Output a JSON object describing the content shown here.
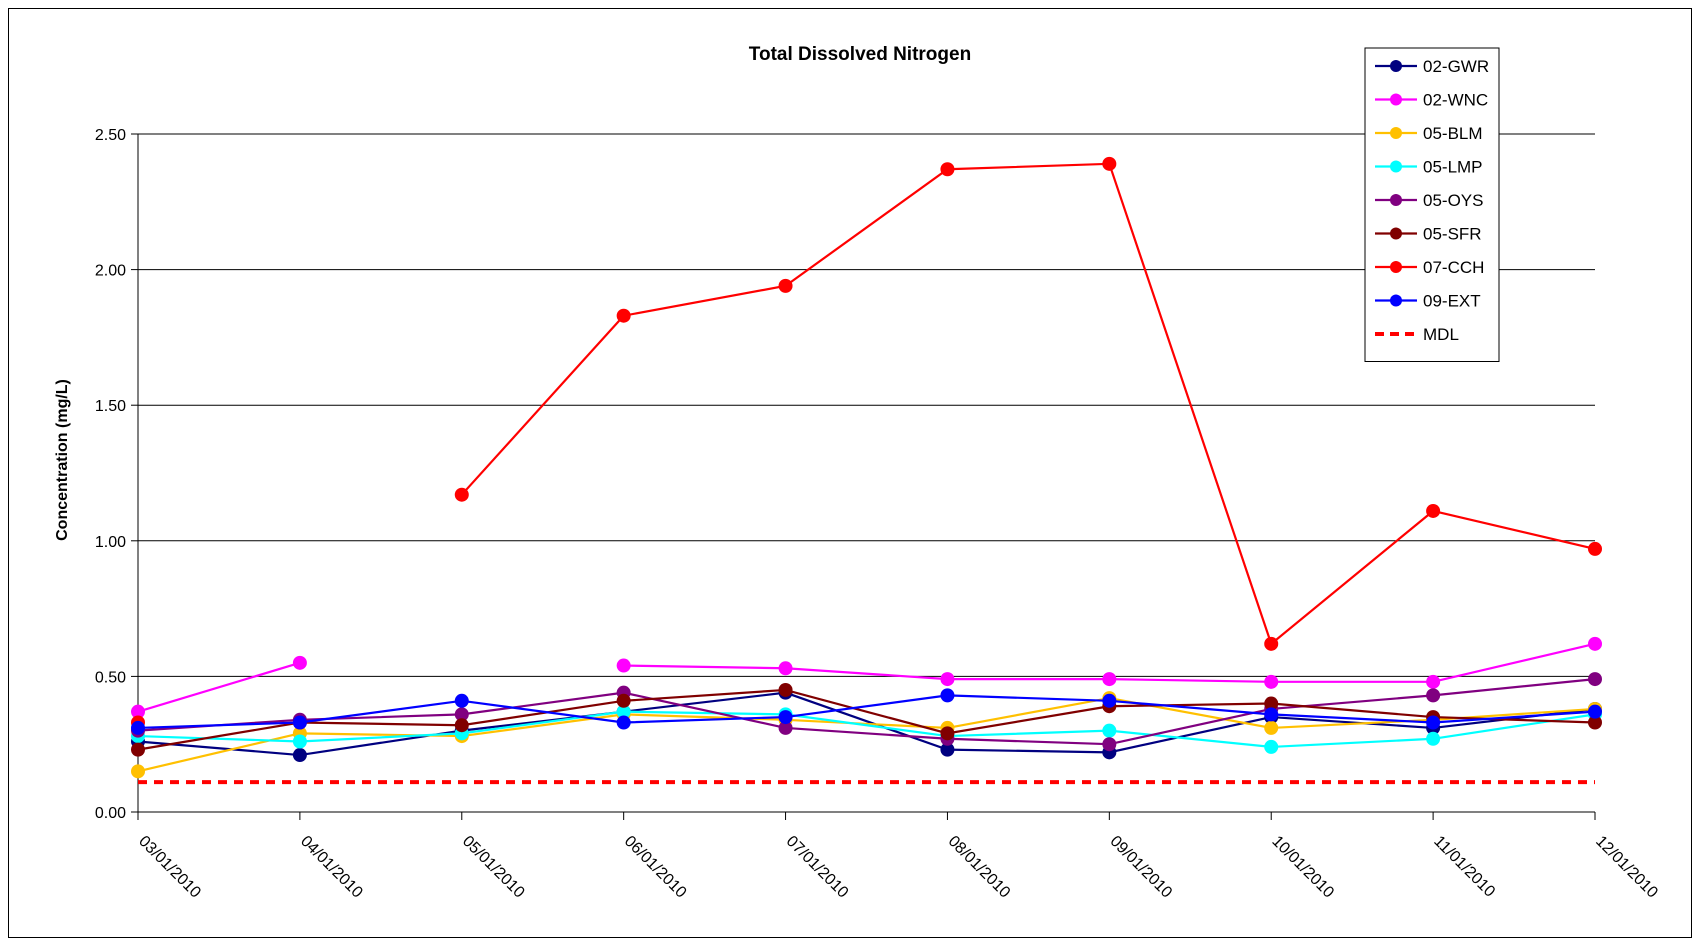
{
  "chart_data": {
    "type": "line",
    "title": "Total Dissolved Nitrogen",
    "xlabel": "",
    "ylabel": "Concentration (mg/L)",
    "ylim": [
      0,
      2.5
    ],
    "yticks": [
      "0.00",
      "0.50",
      "1.00",
      "1.50",
      "2.00",
      "2.50"
    ],
    "grid": true,
    "legend_position": "top-right",
    "categories": [
      "03/01/2010",
      "04/01/2010",
      "05/01/2010",
      "06/01/2010",
      "07/01/2010",
      "08/01/2010",
      "09/01/2010",
      "10/01/2010",
      "11/01/2010",
      "12/01/2010"
    ],
    "series": [
      {
        "name": "02-GWR",
        "color": "#000080",
        "values": [
          0.26,
          0.21,
          0.3,
          0.37,
          0.44,
          0.23,
          0.22,
          0.35,
          0.31,
          0.38
        ]
      },
      {
        "name": "02-WNC",
        "color": "#ff00ff",
        "values": [
          0.37,
          0.55,
          null,
          0.54,
          0.53,
          0.49,
          0.49,
          0.48,
          0.48,
          0.62
        ]
      },
      {
        "name": "05-BLM",
        "color": "#ffc000",
        "values": [
          0.15,
          0.29,
          0.28,
          0.36,
          0.34,
          0.31,
          0.42,
          0.31,
          0.34,
          0.38
        ]
      },
      {
        "name": "05-LMP",
        "color": "#00ffff",
        "values": [
          0.28,
          0.26,
          0.29,
          0.37,
          0.36,
          0.28,
          0.3,
          0.24,
          0.27,
          0.36
        ]
      },
      {
        "name": "05-OYS",
        "color": "#800080",
        "values": [
          0.3,
          0.34,
          0.36,
          0.44,
          0.31,
          0.27,
          0.25,
          0.38,
          0.43,
          0.49
        ]
      },
      {
        "name": "05-SFR",
        "color": "#800000",
        "values": [
          0.23,
          0.33,
          0.32,
          0.41,
          0.45,
          0.29,
          0.39,
          0.4,
          0.35,
          0.33
        ]
      },
      {
        "name": "07-CCH",
        "color": "#ff0000",
        "values": [
          0.33,
          null,
          1.17,
          1.83,
          1.94,
          2.37,
          2.39,
          0.62,
          1.11,
          0.97
        ]
      },
      {
        "name": "09-EXT",
        "color": "#0000ff",
        "values": [
          0.31,
          0.33,
          0.41,
          0.33,
          0.35,
          0.43,
          0.41,
          0.36,
          0.33,
          0.37
        ]
      }
    ],
    "reference_lines": [
      {
        "name": "MDL",
        "color": "#ff0000",
        "style": "dashed",
        "value": 0.11
      }
    ]
  }
}
